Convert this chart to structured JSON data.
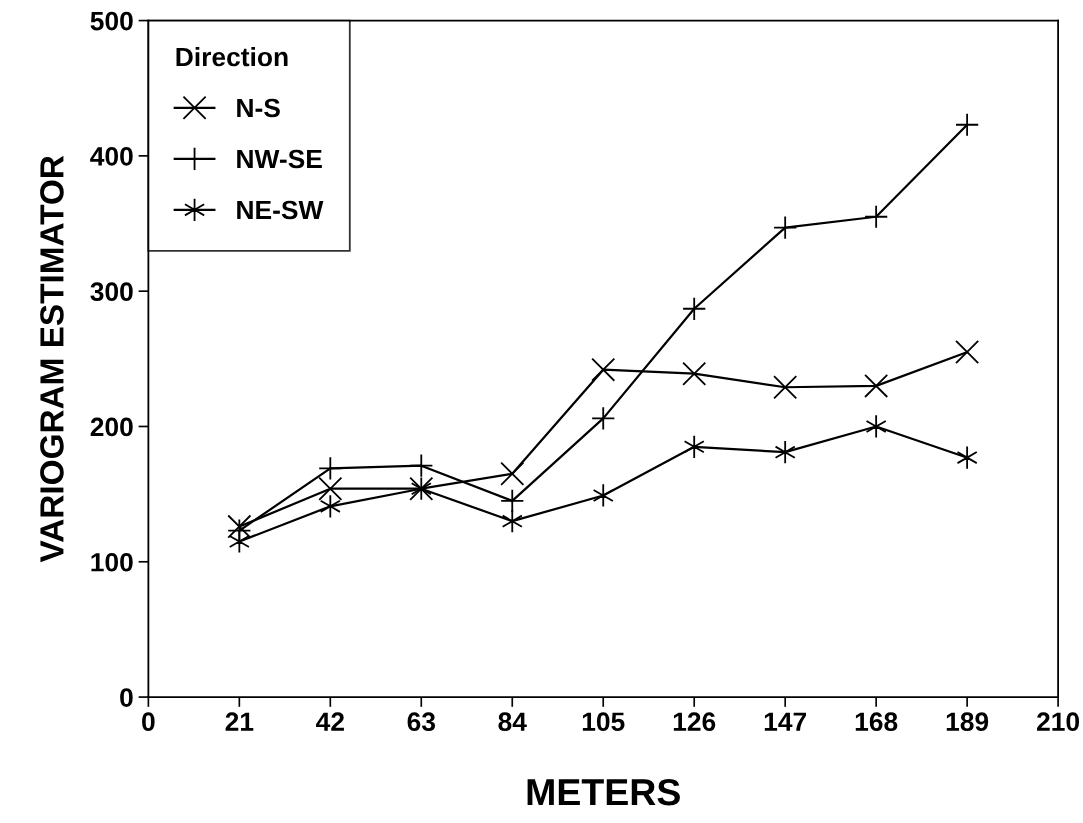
{
  "chart_data": {
    "type": "line",
    "xlabel": "METERS",
    "ylabel": "VARIOGRAM ESTIMATOR",
    "legend_title": "Direction",
    "legend": "top left",
    "grid": false,
    "x": [
      21,
      42,
      63,
      84,
      105,
      126,
      147,
      168,
      189
    ],
    "xlim": [
      0,
      210
    ],
    "xticks": [
      0,
      21,
      42,
      63,
      84,
      105,
      126,
      147,
      168,
      189,
      210
    ],
    "ylim": [
      0,
      500
    ],
    "yticks": [
      0,
      100,
      200,
      300,
      400,
      500
    ],
    "series": [
      {
        "name": "N-S",
        "color": "#000000",
        "marker": "cross",
        "values": [
          126,
          154,
          154,
          165,
          242,
          239,
          229,
          230,
          255
        ]
      },
      {
        "name": "NW-SE",
        "color": "#000000",
        "marker": "cross",
        "values": [
          123,
          169,
          171,
          145,
          206,
          287,
          347,
          355,
          423
        ]
      },
      {
        "name": "NE-SW",
        "color": "#000000",
        "marker": "cross",
        "values": [
          115,
          141,
          154,
          130,
          149,
          185,
          181,
          200,
          177
        ]
      }
    ]
  }
}
